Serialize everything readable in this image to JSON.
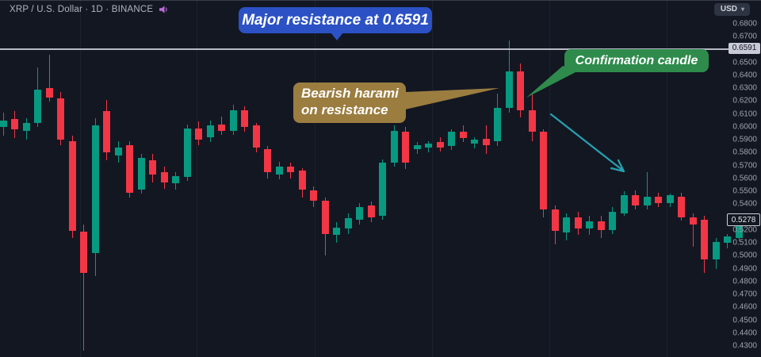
{
  "header": {
    "symbol_title": "XRP / U.S. Dollar · 1D · BINANCE",
    "alert_icon": "speaker-icon"
  },
  "toolbar": {
    "currency_label": "USD",
    "caret": "▾"
  },
  "annotations": {
    "resistance_label": "Major resistance at 0.6591",
    "harami_label_line1": "Bearish harami",
    "harami_label_line2": "on resistance",
    "confirmation_label": "Confirmation candle"
  },
  "price_axis": {
    "ticks": [
      "0.6800",
      "0.6700",
      "0.6500",
      "0.6400",
      "0.6300",
      "0.6200",
      "0.6100",
      "0.6000",
      "0.5900",
      "0.5800",
      "0.5700",
      "0.5600",
      "0.5500",
      "0.5400",
      "0.5300",
      "0.5200",
      "0.5100",
      "0.5000",
      "0.4900",
      "0.4800",
      "0.4700",
      "0.4600",
      "0.4500",
      "0.4400",
      "0.4300"
    ],
    "resistance_tag": "0.6591",
    "last_price_tag": "0.5278"
  },
  "colors": {
    "background": "#131722",
    "up_candle": "#089981",
    "down_candle": "#f23645",
    "resistance_line": "#b8bac6",
    "resistance_tag_bg": "#c9cad8",
    "resistance_tag_text": "#14161f",
    "last_tag_bg": "#141822",
    "last_tag_border": "#c9ccd4",
    "last_tag_text": "#e8eaf0",
    "callout_blue": "#2b51c5",
    "callout_khaki": "#9b7d40",
    "callout_green": "#2e8b4c",
    "arrow_teal": "#26a0b0",
    "header_icon_purple": "#bb6bd9"
  },
  "chart_data": {
    "type": "candlestick",
    "title": "XRP / U.S. Dollar",
    "interval": "1D",
    "exchange": "BINANCE",
    "currency": "USD",
    "resistance_level": 0.6591,
    "last_price": 0.5278,
    "ylim": [
      0.4214,
      0.6985
    ],
    "grid": "faint-vertical",
    "legend_position": "none",
    "candles_format": [
      "open",
      "high",
      "low",
      "close"
    ],
    "candles": [
      [
        0.6,
        0.611,
        0.593,
        0.605
      ],
      [
        0.606,
        0.612,
        0.591,
        0.598
      ],
      [
        0.597,
        0.607,
        0.59,
        0.603
      ],
      [
        0.603,
        0.646,
        0.6,
        0.629
      ],
      [
        0.63,
        0.656,
        0.62,
        0.623
      ],
      [
        0.622,
        0.627,
        0.586,
        0.59
      ],
      [
        0.589,
        0.593,
        0.514,
        0.519
      ],
      [
        0.519,
        0.524,
        0.426,
        0.487
      ],
      [
        0.502,
        0.607,
        0.484,
        0.601
      ],
      [
        0.612,
        0.621,
        0.574,
        0.58
      ],
      [
        0.578,
        0.589,
        0.572,
        0.584
      ],
      [
        0.586,
        0.589,
        0.545,
        0.549
      ],
      [
        0.551,
        0.579,
        0.548,
        0.576
      ],
      [
        0.574,
        0.579,
        0.557,
        0.563
      ],
      [
        0.565,
        0.569,
        0.552,
        0.557
      ],
      [
        0.556,
        0.565,
        0.551,
        0.562
      ],
      [
        0.561,
        0.602,
        0.558,
        0.599
      ],
      [
        0.599,
        0.604,
        0.586,
        0.59
      ],
      [
        0.592,
        0.605,
        0.588,
        0.601
      ],
      [
        0.602,
        0.608,
        0.594,
        0.597
      ],
      [
        0.597,
        0.617,
        0.594,
        0.613
      ],
      [
        0.613,
        0.616,
        0.596,
        0.6
      ],
      [
        0.601,
        0.603,
        0.58,
        0.584
      ],
      [
        0.583,
        0.585,
        0.56,
        0.565
      ],
      [
        0.563,
        0.573,
        0.559,
        0.569
      ],
      [
        0.569,
        0.572,
        0.56,
        0.565
      ],
      [
        0.566,
        0.568,
        0.545,
        0.551
      ],
      [
        0.551,
        0.554,
        0.538,
        0.543
      ],
      [
        0.543,
        0.545,
        0.5,
        0.517
      ],
      [
        0.516,
        0.526,
        0.51,
        0.522
      ],
      [
        0.521,
        0.533,
        0.517,
        0.529
      ],
      [
        0.528,
        0.541,
        0.524,
        0.538
      ],
      [
        0.539,
        0.542,
        0.526,
        0.53
      ],
      [
        0.531,
        0.575,
        0.528,
        0.572
      ],
      [
        0.572,
        0.601,
        0.569,
        0.597
      ],
      [
        0.596,
        0.6,
        0.567,
        0.572
      ],
      [
        0.583,
        0.588,
        0.579,
        0.586
      ],
      [
        0.584,
        0.589,
        0.58,
        0.587
      ],
      [
        0.588,
        0.592,
        0.581,
        0.584
      ],
      [
        0.585,
        0.598,
        0.582,
        0.596
      ],
      [
        0.596,
        0.601,
        0.588,
        0.591
      ],
      [
        0.587,
        0.592,
        0.583,
        0.59
      ],
      [
        0.591,
        0.601,
        0.579,
        0.586
      ],
      [
        0.589,
        0.626,
        0.585,
        0.615
      ],
      [
        0.615,
        0.667,
        0.611,
        0.643
      ],
      [
        0.643,
        0.649,
        0.607,
        0.613
      ],
      [
        0.613,
        0.625,
        0.589,
        0.596
      ],
      [
        0.596,
        0.598,
        0.53,
        0.536
      ],
      [
        0.536,
        0.539,
        0.509,
        0.519
      ],
      [
        0.518,
        0.533,
        0.512,
        0.53
      ],
      [
        0.53,
        0.534,
        0.516,
        0.521
      ],
      [
        0.521,
        0.531,
        0.516,
        0.527
      ],
      [
        0.527,
        0.531,
        0.514,
        0.52
      ],
      [
        0.52,
        0.538,
        0.517,
        0.534
      ],
      [
        0.533,
        0.55,
        0.531,
        0.547
      ],
      [
        0.547,
        0.551,
        0.536,
        0.539
      ],
      [
        0.539,
        0.565,
        0.536,
        0.546
      ],
      [
        0.546,
        0.549,
        0.538,
        0.541
      ],
      [
        0.541,
        0.548,
        0.538,
        0.547
      ],
      [
        0.546,
        0.549,
        0.527,
        0.53
      ],
      [
        0.53,
        0.533,
        0.507,
        0.524
      ],
      [
        0.528,
        0.531,
        0.487,
        0.497
      ],
      [
        0.497,
        0.514,
        0.49,
        0.511
      ],
      [
        0.51,
        0.517,
        0.506,
        0.515
      ],
      [
        0.514,
        0.53,
        0.511,
        0.5278
      ]
    ]
  }
}
